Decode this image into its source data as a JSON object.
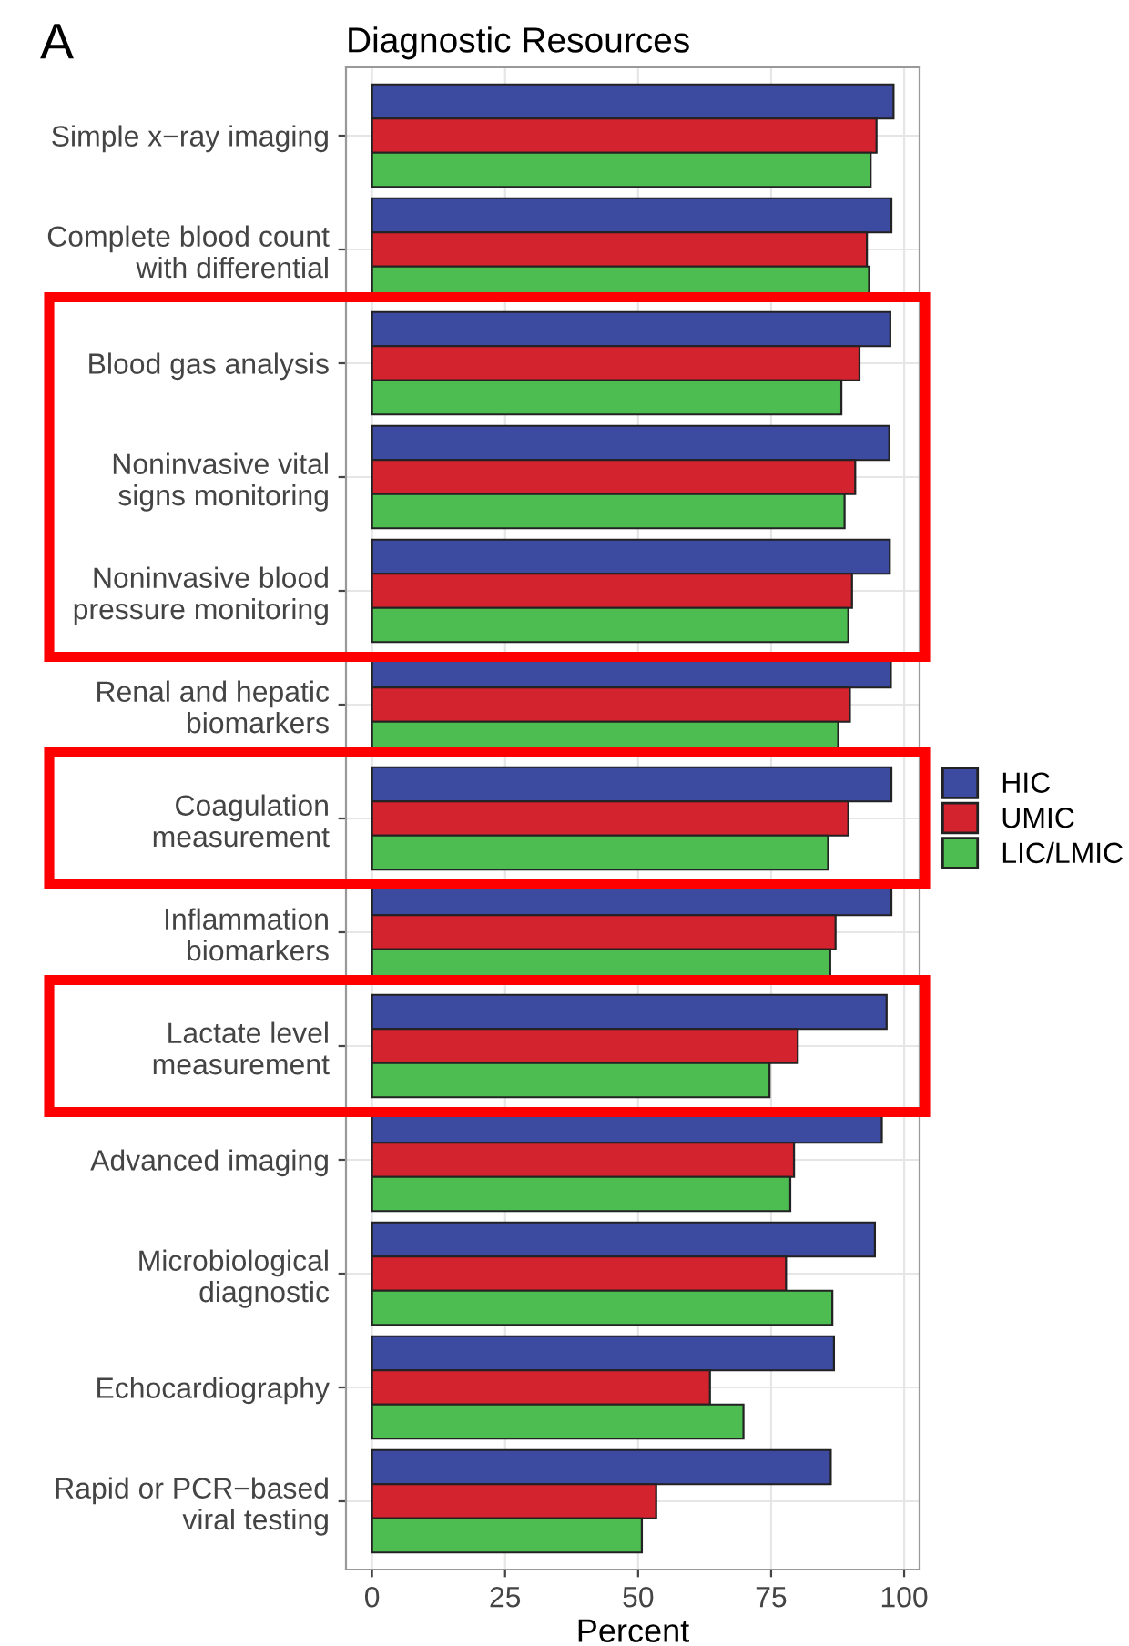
{
  "chart_data": {
    "type": "bar",
    "orientation": "horizontal",
    "title": "Diagnostic Resources",
    "xlabel": "Percent",
    "annotations": [
      "A"
    ],
    "categories": [
      "Simple x−ray imaging",
      "Complete blood count\nwith differential",
      "Blood gas analysis",
      "Noninvasive vital\nsigns monitoring",
      "Noninvasive blood\npressure monitoring",
      "Renal and hepatic\nbiomarkers",
      "Coagulation\nmeasurement",
      "Inflammation\nbiomarkers",
      "Lactate level\nmeasurement",
      "Advanced imaging",
      "Microbiological\ndiagnostic",
      "Echocardiography",
      "Rapid or PCR−based\nviral testing"
    ],
    "series": [
      {
        "name": "HIC",
        "color": "#3c4ba0",
        "values": [
          98,
          97.6,
          97.4,
          97.2,
          97.3,
          97.5,
          97.6,
          97.6,
          96.7,
          95.8,
          94.5,
          86.8,
          86.2
        ]
      },
      {
        "name": "UMIC",
        "color": "#d2232e",
        "values": [
          94.8,
          93,
          91.6,
          90.8,
          90.2,
          89.8,
          89.5,
          87.1,
          80,
          79.3,
          77.8,
          63.5,
          53.4
        ]
      },
      {
        "name": "LIC/LMIC",
        "color": "#4dbd52",
        "values": [
          93.7,
          93.4,
          88.2,
          88.8,
          89.5,
          87.6,
          85.7,
          86.1,
          74.7,
          78.6,
          86.5,
          69.8,
          50.7
        ]
      }
    ],
    "xlim": [
      -4.9,
      102.9
    ],
    "xticks": [
      0,
      25,
      50,
      75,
      100
    ],
    "grid": true,
    "legend": "right"
  }
}
